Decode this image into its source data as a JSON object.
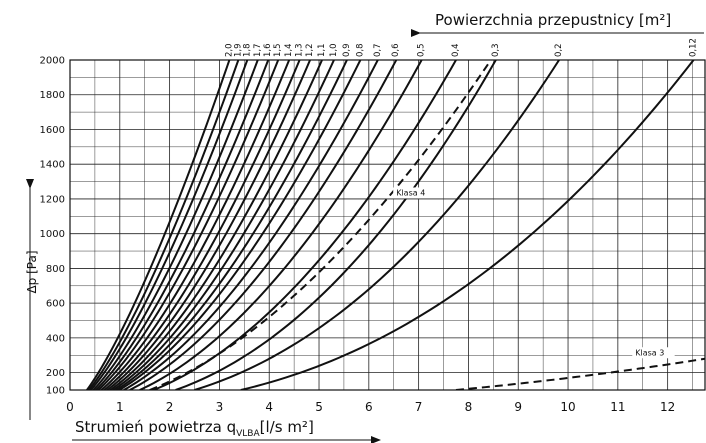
{
  "chart_data": {
    "type": "line",
    "top_axis_title": "Powierzchnia przepustnicy [m²]",
    "ylabel": "Δp [Pa]",
    "xlabel_main": "Strumień powietrza q",
    "xlabel_sub": "VLBA",
    "xlabel_unit": "[l/s m²]",
    "x_ticks": [
      "0",
      "1",
      "2",
      "3",
      "4",
      "5",
      "6",
      "7",
      "8",
      "9",
      "10",
      "11",
      "12"
    ],
    "y_ticks": [
      "100",
      "200",
      "400",
      "600",
      "800",
      "1000",
      "1200",
      "1400",
      "1600",
      "1800",
      "2000"
    ],
    "xlim": [
      0,
      12.75
    ],
    "ylim": [
      100,
      2000
    ],
    "grid": true,
    "series": [
      {
        "name": "2,0",
        "points": [
          [
            0.34,
            100
          ],
          [
            3.2,
            2000
          ]
        ]
      },
      {
        "name": "1,9",
        "points": [
          [
            0.38,
            100
          ],
          [
            3.38,
            2000
          ]
        ]
      },
      {
        "name": "1,8",
        "points": [
          [
            0.42,
            100
          ],
          [
            3.56,
            2000
          ]
        ]
      },
      {
        "name": "1,7",
        "points": [
          [
            0.47,
            100
          ],
          [
            3.77,
            2000
          ]
        ]
      },
      {
        "name": "1,6",
        "points": [
          [
            0.52,
            100
          ],
          [
            3.98,
            2000
          ]
        ]
      },
      {
        "name": "1,5",
        "points": [
          [
            0.57,
            100
          ],
          [
            4.18,
            2000
          ]
        ]
      },
      {
        "name": "1,4",
        "points": [
          [
            0.63,
            100
          ],
          [
            4.4,
            2000
          ]
        ]
      },
      {
        "name": "1,3",
        "points": [
          [
            0.69,
            100
          ],
          [
            4.61,
            2000
          ]
        ]
      },
      {
        "name": "1,2",
        "points": [
          [
            0.75,
            100
          ],
          [
            4.82,
            2000
          ]
        ]
      },
      {
        "name": "1,1",
        "points": [
          [
            0.81,
            100
          ],
          [
            5.06,
            2000
          ]
        ]
      },
      {
        "name": "1,0",
        "points": [
          [
            0.87,
            100
          ],
          [
            5.3,
            2000
          ]
        ]
      },
      {
        "name": "0,9",
        "points": [
          [
            0.93,
            100
          ],
          [
            5.56,
            2000
          ]
        ]
      },
      {
        "name": "0,8",
        "points": [
          [
            0.99,
            100
          ],
          [
            5.83,
            2000
          ]
        ]
      },
      {
        "name": "0,7",
        "points": [
          [
            1.08,
            100
          ],
          [
            6.18,
            2000
          ]
        ]
      },
      {
        "name": "0,6",
        "points": [
          [
            1.2,
            100
          ],
          [
            6.55,
            2000
          ]
        ]
      },
      {
        "name": "0,5",
        "points": [
          [
            1.4,
            100
          ],
          [
            7.06,
            2000
          ]
        ]
      },
      {
        "name": "0,4",
        "points": [
          [
            1.68,
            100
          ],
          [
            7.75,
            2000
          ]
        ]
      },
      {
        "name": "0,3",
        "points": [
          [
            2.12,
            100
          ],
          [
            8.55,
            2000
          ]
        ]
      },
      {
        "name": "0,2",
        "points": [
          [
            2.5,
            100
          ],
          [
            9.82,
            2000
          ]
        ]
      },
      {
        "name": "0,12",
        "points": [
          [
            3.43,
            100
          ],
          [
            12.52,
            2000
          ]
        ]
      }
    ],
    "class_lines": [
      {
        "name": "Klasa 4",
        "label_pos": [
          6.55,
          1220
        ],
        "points": [
          [
            1.6,
            100
          ],
          [
            8.45,
            2000
          ]
        ]
      },
      {
        "name": "Klasa 3",
        "label_pos": [
          11.35,
          300
        ],
        "points": [
          [
            7.75,
            100
          ],
          [
            12.75,
            280
          ]
        ]
      }
    ]
  }
}
